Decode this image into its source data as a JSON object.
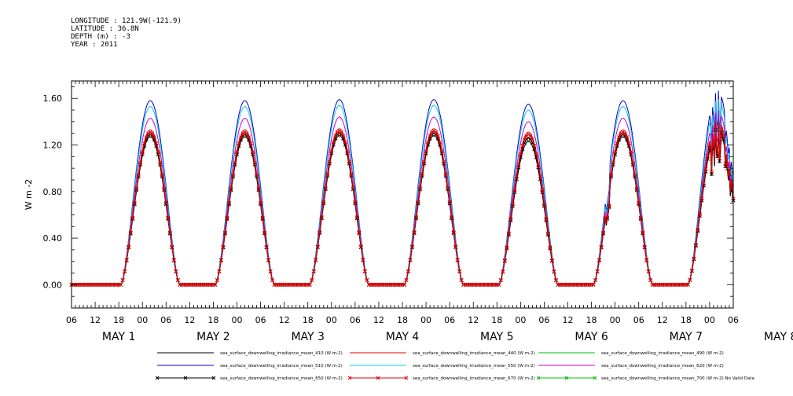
{
  "header": {
    "longitude": "LONGITUDE : 121.9W(-121.9)",
    "latitude": "LATITUDE : 36.8N",
    "depth": "DEPTH (m) : -3",
    "year": "YEAR : 2011"
  },
  "chart_data": {
    "type": "line",
    "title": "",
    "xlabel": "",
    "ylabel": "W m-2",
    "ylim": [
      -0.2,
      1.75
    ],
    "yticks": [
      "0.00",
      "0.40",
      "0.80",
      "1.20",
      "1.60"
    ],
    "ytick_values": [
      0.0,
      0.4,
      0.8,
      1.2,
      1.6
    ],
    "x_hour_ticks": [
      "06",
      "12",
      "18",
      "00",
      "06",
      "12",
      "18",
      "00",
      "06",
      "12",
      "18",
      "00",
      "06",
      "12",
      "18",
      "00",
      "06",
      "12",
      "18",
      "00",
      "06",
      "12",
      "18",
      "00",
      "06",
      "12",
      "18",
      "00",
      "06"
    ],
    "day_labels": [
      "MAY 1",
      "MAY 2",
      "MAY 3",
      "MAY 4",
      "MAY 5",
      "MAY 6",
      "MAY 7",
      "MAY 8"
    ],
    "x_range_hours": [
      0,
      168
    ],
    "grid": false,
    "legend_position": "bottom",
    "daily_peaks": {
      "mean_510": [
        1.58,
        1.58,
        1.59,
        1.59,
        1.55,
        1.58,
        1.67
      ],
      "mean_550": [
        1.53,
        1.53,
        1.54,
        1.54,
        1.5,
        1.53,
        1.6
      ],
      "mean_620": [
        1.43,
        1.43,
        1.44,
        1.44,
        1.4,
        1.43,
        1.5
      ],
      "mean_440": [
        1.33,
        1.33,
        1.34,
        1.34,
        1.31,
        1.33,
        1.42
      ],
      "mean_670": [
        1.31,
        1.31,
        1.32,
        1.32,
        1.29,
        1.31,
        1.38
      ],
      "mean_410": [
        1.27,
        1.27,
        1.28,
        1.28,
        1.23,
        1.27,
        1.33
      ],
      "mean_490": [
        1.31,
        1.31,
        1.32,
        1.32,
        1.29,
        1.31,
        1.38
      ],
      "mean_650": [
        1.29,
        1.29,
        1.3,
        1.3,
        1.26,
        1.29,
        1.35
      ],
      "mean_700": [
        0,
        0,
        0,
        0,
        0,
        0,
        0
      ]
    },
    "series": [
      {
        "key": "mean_410",
        "name": "sea_surface_downwelling_irradiance_mean_410 (W m-2)",
        "color": "#000000",
        "marker": "none"
      },
      {
        "key": "mean_440",
        "name": "sea_surface_downwelling_irradiance_mean_440 (W m-2)",
        "color": "#e00000",
        "marker": "none"
      },
      {
        "key": "mean_490",
        "name": "sea_surface_downwelling_irradiance_mean_490 (W m-2)",
        "color": "#00c000",
        "marker": "none"
      },
      {
        "key": "mean_510",
        "name": "sea_surface_downwelling_irradiance_mean_510 (W m-2)",
        "color": "#0000d0",
        "marker": "none"
      },
      {
        "key": "mean_550",
        "name": "sea_surface_downwelling_irradiance_mean_550 (W m-2)",
        "color": "#00d0e0",
        "marker": "none"
      },
      {
        "key": "mean_620",
        "name": "sea_surface_downwelling_irradiance_mean_620 (W m-2)",
        "color": "#d000d0",
        "marker": "none"
      },
      {
        "key": "mean_650",
        "name": "sea_surface_downwelling_irradiance_mean_650 (W m-2)",
        "color": "#000000",
        "marker": "x"
      },
      {
        "key": "mean_670",
        "name": "sea_surface_downwelling_irradiance_mean_670 (W m-2)",
        "color": "#e00000",
        "marker": "x"
      },
      {
        "key": "mean_700",
        "name": "sea_surface_downwelling_irradiance_mean_700 (W m-2) No Valid Data",
        "color": "#00c000",
        "marker": "x"
      }
    ],
    "sunrise_hour": 12.5,
    "sunset_hour": 27.5,
    "noon_hour": 20.0
  }
}
